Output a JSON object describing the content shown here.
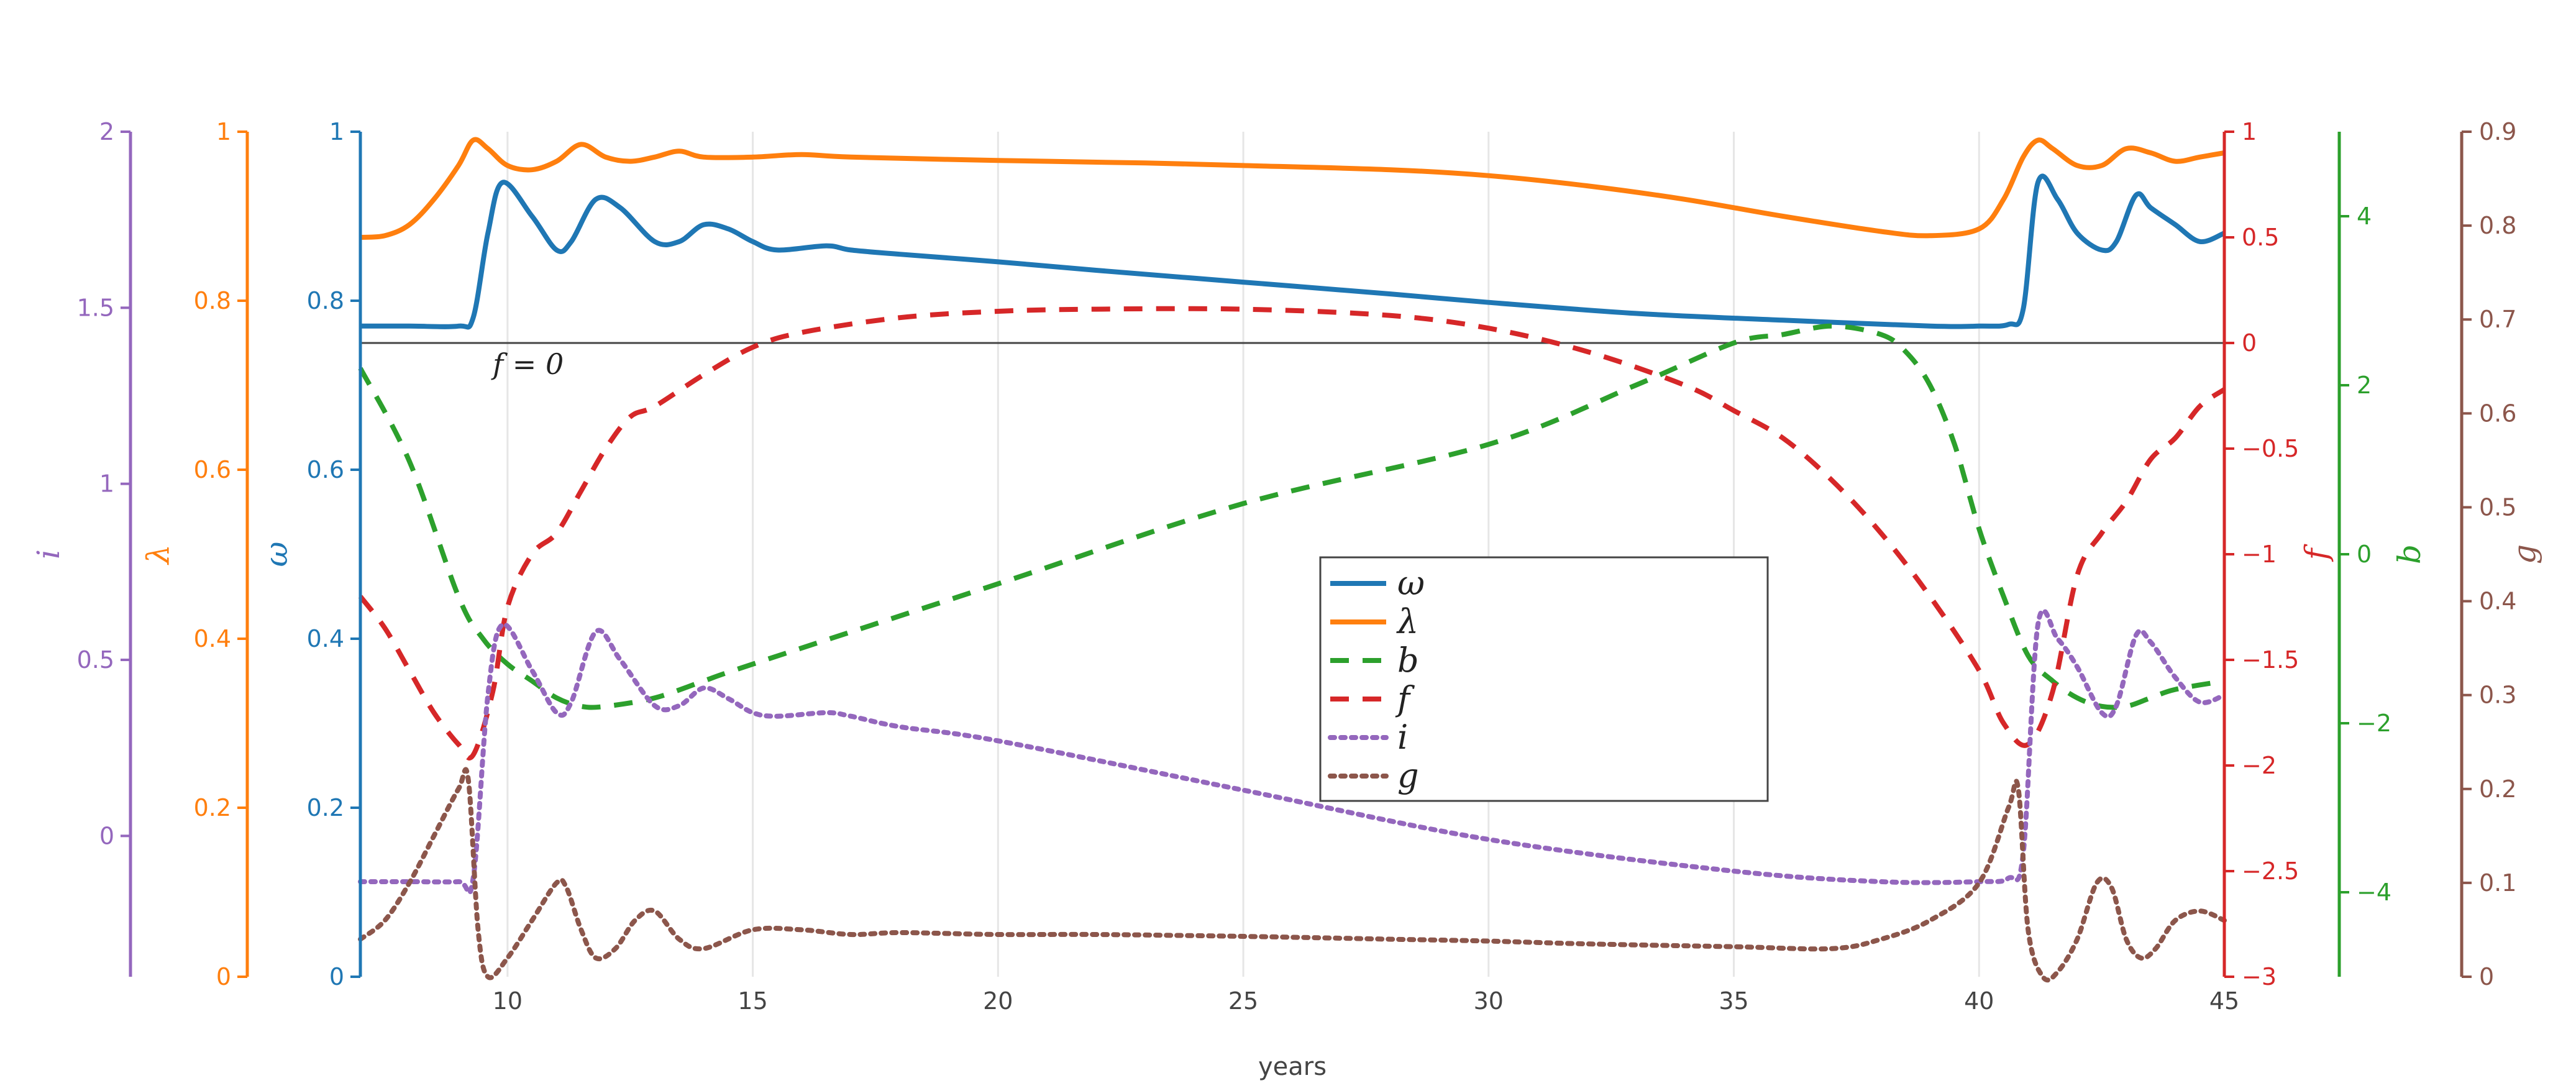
{
  "chart_data": {
    "type": "line",
    "xlabel": "years",
    "xlim": [
      7,
      45
    ],
    "x_ticks": [
      "10",
      "15",
      "20",
      "25",
      "30",
      "35",
      "40",
      "45"
    ],
    "annotation": "f = 0",
    "colors": {
      "omega": "#1f77b4",
      "lambda": "#ff7f0e",
      "b": "#2ca02c",
      "f": "#d62728",
      "i": "#9467bd",
      "g": "#8c564b"
    },
    "axes": {
      "i": {
        "label": "i",
        "range": [
          -0.4,
          2
        ],
        "ticks": [
          "0",
          "0.5",
          "1",
          "1.5",
          "2"
        ],
        "side": "left"
      },
      "lambda": {
        "label": "λ",
        "range": [
          0,
          1
        ],
        "ticks": [
          "0",
          "0.2",
          "0.4",
          "0.6",
          "0.8",
          "1"
        ],
        "side": "left"
      },
      "omega": {
        "label": "ω",
        "range": [
          0,
          1
        ],
        "ticks": [
          "0",
          "0.2",
          "0.4",
          "0.6",
          "0.8",
          "1"
        ],
        "side": "left"
      },
      "f": {
        "label": "f",
        "range": [
          -3,
          1
        ],
        "ticks": [
          "−3",
          "−2.5",
          "−2",
          "−1.5",
          "−1",
          "−0.5",
          "0",
          "0.5",
          "1"
        ],
        "side": "right"
      },
      "b": {
        "label": "b",
        "range": [
          -5,
          5
        ],
        "ticks": [
          "−4",
          "−2",
          "0",
          "2",
          "4"
        ],
        "side": "right"
      },
      "g": {
        "label": "g",
        "range": [
          0,
          0.9
        ],
        "ticks": [
          "0",
          "0.1",
          "0.2",
          "0.3",
          "0.4",
          "0.5",
          "0.6",
          "0.7",
          "0.8",
          "0.9"
        ],
        "side": "right"
      }
    },
    "legend": [
      "ω",
      "λ",
      "b",
      "f",
      "i",
      "g"
    ],
    "series": [
      {
        "name": "ω",
        "axis": "omega",
        "dash": "solid",
        "x": [
          7,
          8,
          9,
          9.3,
          9.6,
          9.9,
          10.5,
          11,
          11.3,
          11.8,
          12.3,
          13,
          13.5,
          14,
          14.5,
          15,
          15.5,
          16.5,
          17,
          18,
          20,
          22,
          25,
          28,
          30,
          33,
          36,
          39,
          40,
          40.6,
          40.9,
          41.2,
          41.6,
          42,
          42.5,
          42.8,
          43.2,
          43.5,
          44,
          44.5,
          45
        ],
        "y": [
          0.77,
          0.77,
          0.77,
          0.78,
          0.88,
          0.94,
          0.9,
          0.86,
          0.87,
          0.92,
          0.91,
          0.87,
          0.87,
          0.89,
          0.885,
          0.87,
          0.86,
          0.865,
          0.86,
          0.855,
          0.846,
          0.836,
          0.822,
          0.808,
          0.798,
          0.785,
          0.777,
          0.77,
          0.77,
          0.772,
          0.79,
          0.94,
          0.92,
          0.88,
          0.86,
          0.87,
          0.925,
          0.91,
          0.89,
          0.87,
          0.88
        ]
      },
      {
        "name": "λ",
        "axis": "lambda",
        "dash": "solid",
        "x": [
          7,
          7.5,
          8,
          8.5,
          9,
          9.3,
          9.6,
          10,
          10.5,
          11,
          11.5,
          12,
          12.5,
          13,
          13.5,
          14,
          15,
          16,
          17,
          20,
          23,
          25,
          28,
          30,
          32,
          34,
          36,
          38,
          39,
          40,
          40.5,
          40.9,
          41.2,
          41.5,
          42,
          42.5,
          43,
          43.5,
          44,
          44.5,
          45
        ],
        "y": [
          0.875,
          0.877,
          0.89,
          0.92,
          0.96,
          0.99,
          0.98,
          0.96,
          0.955,
          0.965,
          0.985,
          0.97,
          0.965,
          0.97,
          0.977,
          0.97,
          0.97,
          0.973,
          0.97,
          0.966,
          0.963,
          0.96,
          0.955,
          0.948,
          0.936,
          0.92,
          0.9,
          0.882,
          0.877,
          0.885,
          0.92,
          0.97,
          0.99,
          0.98,
          0.96,
          0.96,
          0.98,
          0.975,
          0.965,
          0.97,
          0.975
        ]
      },
      {
        "name": "b",
        "axis": "b",
        "dash": "dash",
        "x": [
          7,
          8,
          9,
          9.5,
          10,
          10.5,
          11,
          11.5,
          12,
          13,
          14,
          15,
          20,
          25,
          30,
          33,
          35,
          36,
          37,
          38,
          38.5,
          39,
          39.5,
          40,
          40.5,
          41,
          41.5,
          42,
          42.5,
          43,
          43.5,
          44,
          45
        ],
        "y": [
          2.2,
          1.1,
          -0.5,
          -1,
          -1.3,
          -1.5,
          -1.7,
          -1.8,
          -1.8,
          -1.7,
          -1.5,
          -1.3,
          -0.35,
          0.6,
          1.3,
          2,
          2.5,
          2.6,
          2.7,
          2.6,
          2.4,
          2.0,
          1.3,
          0.3,
          -0.5,
          -1.2,
          -1.5,
          -1.7,
          -1.8,
          -1.8,
          -1.7,
          -1.6,
          -1.5
        ]
      },
      {
        "name": "f",
        "axis": "f",
        "dash": "dash",
        "x": [
          7,
          7.5,
          8,
          8.5,
          9,
          9.3,
          9.7,
          10,
          10.5,
          11,
          11.5,
          12,
          12.5,
          13,
          14,
          15,
          16,
          18,
          20,
          22,
          25,
          28,
          30,
          32,
          34,
          35,
          36,
          37,
          38,
          39,
          40,
          40.5,
          41,
          41.5,
          42,
          42.5,
          43,
          43.5,
          44,
          44.5,
          45
        ],
        "y": [
          -1.2,
          -1.35,
          -1.55,
          -1.75,
          -1.9,
          -1.95,
          -1.65,
          -1.25,
          -1.0,
          -0.9,
          -0.7,
          -0.5,
          -0.35,
          -0.3,
          -0.15,
          -0.02,
          0.05,
          0.12,
          0.15,
          0.16,
          0.16,
          0.13,
          0.07,
          -0.04,
          -0.2,
          -0.32,
          -0.45,
          -0.65,
          -0.9,
          -1.2,
          -1.55,
          -1.8,
          -1.9,
          -1.65,
          -1.1,
          -0.9,
          -0.75,
          -0.55,
          -0.45,
          -0.3,
          -0.22
        ]
      },
      {
        "name": "i",
        "axis": "i",
        "dash": "dot",
        "x": [
          7,
          8,
          9,
          9.3,
          9.6,
          9.9,
          10.5,
          11,
          11.3,
          11.8,
          12.3,
          13,
          13.5,
          14,
          14.5,
          15,
          15.5,
          16.5,
          17,
          18,
          20,
          25,
          30,
          35,
          38,
          40,
          40.6,
          40.9,
          41.2,
          41.6,
          42,
          42.5,
          42.8,
          43.2,
          43.5,
          44,
          44.5,
          45
        ],
        "y": [
          -0.13,
          -0.13,
          -0.13,
          -0.12,
          0.4,
          0.6,
          0.47,
          0.35,
          0.38,
          0.58,
          0.5,
          0.37,
          0.37,
          0.42,
          0.39,
          0.35,
          0.34,
          0.35,
          0.34,
          0.31,
          0.27,
          0.13,
          -0.01,
          -0.1,
          -0.13,
          -0.13,
          -0.12,
          -0.05,
          0.6,
          0.56,
          0.48,
          0.35,
          0.37,
          0.57,
          0.55,
          0.45,
          0.38,
          0.4
        ]
      },
      {
        "name": "g",
        "axis": "g",
        "dash": "dot",
        "x": [
          7,
          7.5,
          8,
          8.5,
          9,
          9.2,
          9.4,
          9.6,
          10,
          10.5,
          11,
          11.2,
          11.5,
          11.8,
          12.2,
          12.6,
          13,
          13.5,
          14,
          15,
          16,
          17,
          18,
          20,
          22,
          25,
          28,
          30,
          32,
          35,
          37,
          38,
          39,
          40,
          40.6,
          40.8,
          41,
          41.3,
          41.6,
          42,
          42.4,
          42.7,
          43,
          43.3,
          43.6,
          44,
          44.5,
          45
        ],
        "y": [
          0.04,
          0.06,
          0.1,
          0.15,
          0.2,
          0.21,
          0.05,
          0.0,
          0.02,
          0.06,
          0.1,
          0.095,
          0.05,
          0.02,
          0.03,
          0.06,
          0.07,
          0.04,
          0.03,
          0.05,
          0.05,
          0.045,
          0.047,
          0.045,
          0.045,
          0.043,
          0.04,
          0.038,
          0.035,
          0.032,
          0.03,
          0.04,
          0.06,
          0.1,
          0.18,
          0.2,
          0.05,
          0.0,
          0.005,
          0.04,
          0.1,
          0.095,
          0.04,
          0.02,
          0.03,
          0.06,
          0.07,
          0.06
        ]
      }
    ]
  }
}
